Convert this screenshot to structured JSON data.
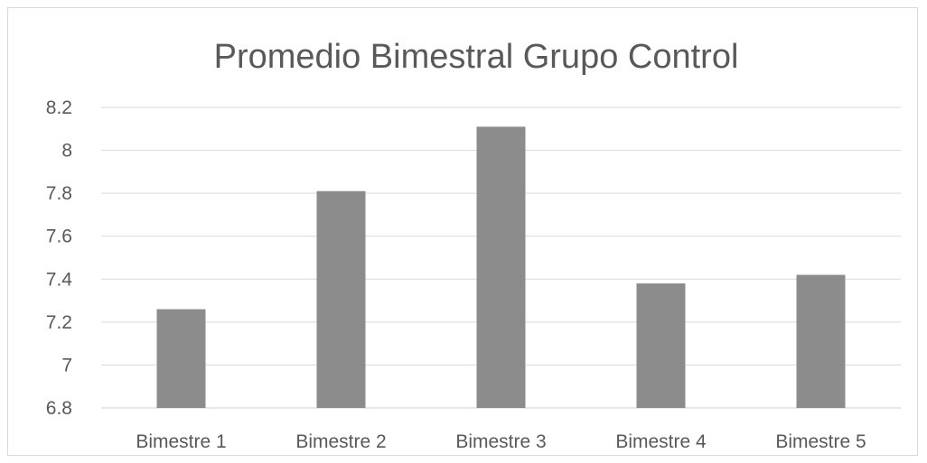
{
  "chart_data": {
    "type": "bar",
    "title": "Promedio Bimestral Grupo Control",
    "xlabel": "",
    "ylabel": "",
    "categories": [
      "Bimestre 1",
      "Bimestre 2",
      "Bimestre 3",
      "Bimestre 4",
      "Bimestre 5"
    ],
    "values": [
      7.26,
      7.81,
      8.11,
      7.38,
      7.42
    ],
    "ylim": [
      6.8,
      8.2
    ],
    "yticks": [
      "6.8",
      "7",
      "7.2",
      "7.4",
      "7.6",
      "7.8",
      "8",
      "8.2"
    ],
    "grid": true,
    "legend": "none",
    "colors": {
      "bar": "#8c8c8c",
      "grid": "#d9d9d9",
      "text": "#595959"
    }
  }
}
